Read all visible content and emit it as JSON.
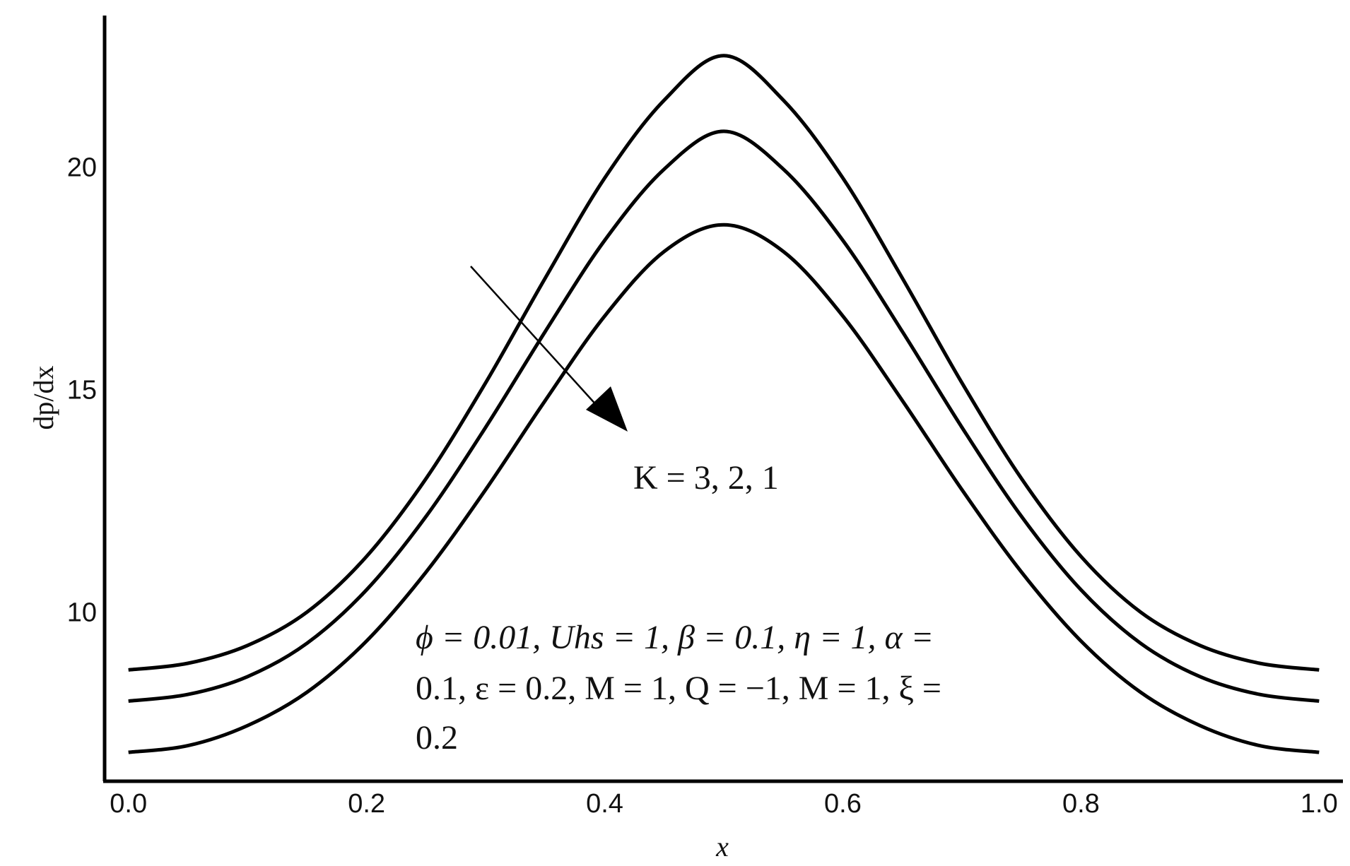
{
  "chart_data": {
    "type": "line",
    "xlabel": "x",
    "ylabel": "dp/dx",
    "xlim": [
      -0.02,
      1.02
    ],
    "ylim": [
      6.2,
      23.4
    ],
    "xticks": [
      0.0,
      0.2,
      0.4,
      0.6,
      0.8,
      1.0
    ],
    "xtick_labels": [
      "0.0",
      "0.2",
      "0.4",
      "0.6",
      "0.8",
      "1.0"
    ],
    "yticks": [
      10,
      15,
      20
    ],
    "ytick_labels": [
      "10",
      "15",
      "20"
    ],
    "grid": false,
    "legend": "none",
    "line_color": "#000000",
    "x": [
      0.0,
      0.05,
      0.1,
      0.15,
      0.2,
      0.25,
      0.3,
      0.35,
      0.4,
      0.45,
      0.5,
      0.55,
      0.6,
      0.65,
      0.7,
      0.75,
      0.8,
      0.85,
      0.9,
      0.95,
      1.0
    ],
    "series": [
      {
        "values": [
          8.7,
          8.85,
          9.25,
          10.0,
          11.25,
          13.0,
          15.15,
          17.5,
          19.75,
          21.5,
          22.5,
          21.5,
          19.75,
          17.5,
          15.15,
          13.0,
          11.25,
          10.0,
          9.25,
          8.85,
          8.7
        ]
      },
      {
        "values": [
          8.0,
          8.15,
          8.55,
          9.3,
          10.5,
          12.15,
          14.15,
          16.3,
          18.35,
          19.95,
          20.8,
          19.95,
          18.35,
          16.3,
          14.15,
          12.15,
          10.5,
          9.3,
          8.55,
          8.15,
          8.0
        ]
      },
      {
        "values": [
          6.85,
          7.0,
          7.45,
          8.2,
          9.35,
          10.9,
          12.75,
          14.75,
          16.65,
          18.1,
          18.7,
          18.1,
          16.65,
          14.75,
          12.75,
          10.9,
          9.35,
          8.2,
          7.45,
          7.0,
          6.85
        ]
      }
    ],
    "annotations": {
      "arrow_label": "K = 3, 2, 1",
      "params_line1": "ϕ  = 0.01, Uhs  =  1, β = 0.1, η  = 1, α =",
      "params_line2": "0.1, ε = 0.2, M = 1, Q = −1, M = 1, ξ =",
      "params_line3": "0.2"
    }
  }
}
